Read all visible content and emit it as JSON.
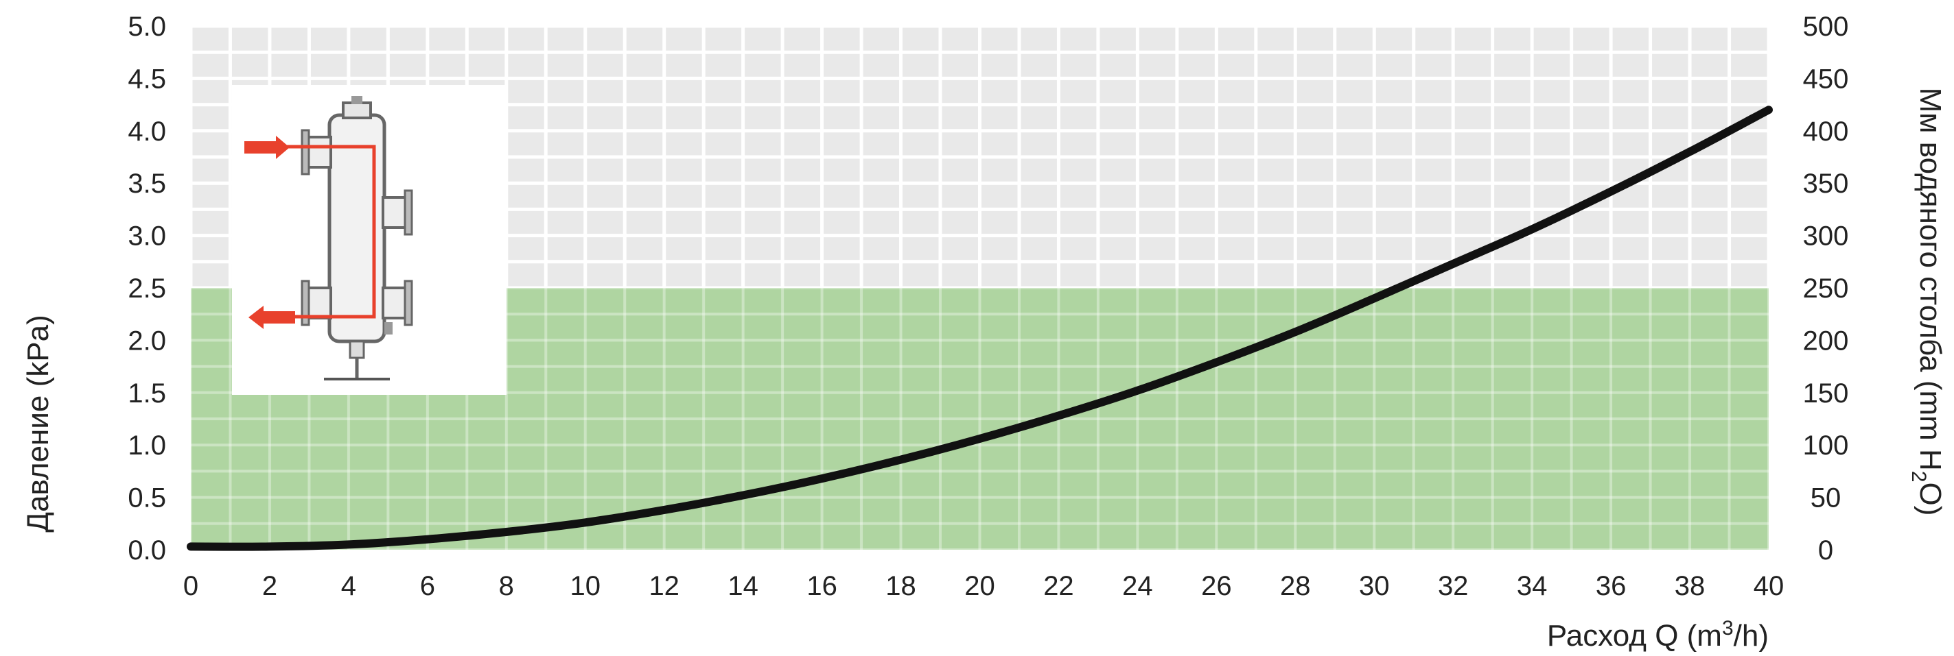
{
  "chart_data": {
    "type": "line",
    "x_axis": {
      "label_text": "Расход Q (m",
      "label_sup": "3",
      "label_tail": "/h)",
      "range": [
        0,
        40
      ],
      "ticks": [
        "0",
        "2",
        "4",
        "6",
        "8",
        "10",
        "12",
        "14",
        "16",
        "18",
        "20",
        "22",
        "24",
        "26",
        "28",
        "30",
        "32",
        "34",
        "36",
        "38",
        "40"
      ]
    },
    "y_left": {
      "label": "Давление (kPa)",
      "range": [
        0,
        5
      ],
      "ticks": [
        "0.0",
        "0.5",
        "1.0",
        "1.5",
        "2.0",
        "2.5",
        "3.0",
        "3.5",
        "4.0",
        "4.5",
        "5.0"
      ]
    },
    "y_right": {
      "label_text": "Мм водяного столба (mm H",
      "label_sub": "2",
      "label_tail": "O)",
      "range": [
        0,
        500
      ],
      "ticks": [
        "0",
        "50",
        "100",
        "150",
        "200",
        "250",
        "300",
        "350",
        "400",
        "450",
        "500"
      ]
    },
    "recommended_zone": {
      "y_from": 0,
      "y_to": 2.5,
      "color": "#a9d39a"
    },
    "series": [
      {
        "color": "#111111",
        "points": [
          [
            0,
            0.03
          ],
          [
            2,
            0.03
          ],
          [
            4,
            0.05
          ],
          [
            6,
            0.1
          ],
          [
            8,
            0.17
          ],
          [
            10,
            0.26
          ],
          [
            12,
            0.38
          ],
          [
            14,
            0.52
          ],
          [
            16,
            0.68
          ],
          [
            18,
            0.86
          ],
          [
            20,
            1.06
          ],
          [
            22,
            1.28
          ],
          [
            24,
            1.52
          ],
          [
            26,
            1.79
          ],
          [
            28,
            2.08
          ],
          [
            30,
            2.4
          ],
          [
            32,
            2.73
          ],
          [
            34,
            3.06
          ],
          [
            36,
            3.42
          ],
          [
            38,
            3.8
          ],
          [
            40,
            4.2
          ]
        ]
      }
    ],
    "grid": true,
    "inset_diagram": "hydraulic-separator-icon"
  }
}
